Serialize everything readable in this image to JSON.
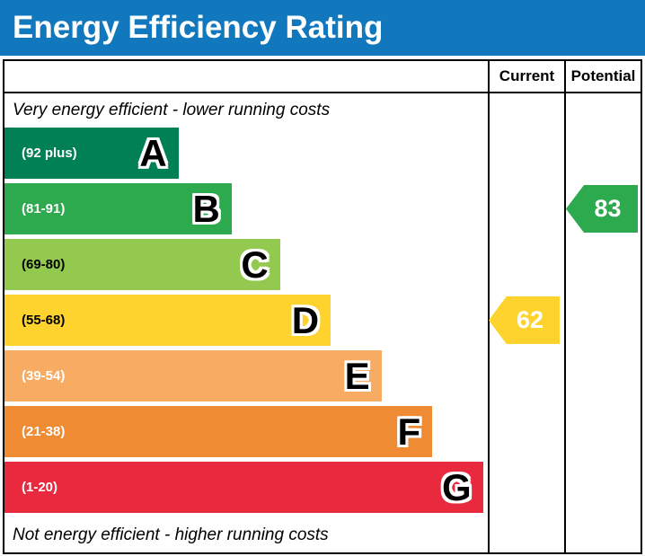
{
  "title": "Energy Efficiency Rating",
  "title_bg": "#1278be",
  "columns": {
    "current": "Current",
    "potential": "Potential"
  },
  "notes": {
    "top": "Very energy efficient - lower running costs",
    "bottom": "Not energy efficient - higher running costs"
  },
  "bands": [
    {
      "letter": "A",
      "range": "(92 plus)",
      "color": "#008054",
      "width": "36%",
      "label_color": "#ffffff"
    },
    {
      "letter": "B",
      "range": "(81-91)",
      "color": "#2eaa4e",
      "width": "47%",
      "label_color": "#ffffff"
    },
    {
      "letter": "C",
      "range": "(69-80)",
      "color": "#92c94e",
      "width": "57%",
      "label_color": "#000000"
    },
    {
      "letter": "D",
      "range": "(55-68)",
      "color": "#fed32e",
      "width": "67.5%",
      "label_color": "#000000"
    },
    {
      "letter": "E",
      "range": "(39-54)",
      "color": "#f7ab63",
      "width": "78%",
      "label_color": "#ffffff"
    },
    {
      "letter": "F",
      "range": "(21-38)",
      "color": "#ee8b33",
      "width": "88.5%",
      "label_color": "#ffffff"
    },
    {
      "letter": "G",
      "range": "(1-20)",
      "color": "#e9293d",
      "width": "99%",
      "label_color": "#ffffff"
    }
  ],
  "ratings": {
    "current": {
      "value": "62",
      "band": "D",
      "row": 3,
      "color": "#fed32e"
    },
    "potential": {
      "value": "83",
      "band": "B",
      "row": 1,
      "color": "#2eaa4e"
    }
  },
  "chart_data": {
    "type": "bar",
    "title": "Energy Efficiency Rating",
    "categories": [
      "A (92 plus)",
      "B (81-91)",
      "C (69-80)",
      "D (55-68)",
      "E (39-54)",
      "F (21-38)",
      "G (1-20)"
    ],
    "band_colors": [
      "#008054",
      "#2eaa4e",
      "#92c94e",
      "#fed32e",
      "#f7ab63",
      "#ee8b33",
      "#e9293d"
    ],
    "series": [
      {
        "name": "Current",
        "value": 62,
        "band": "D"
      },
      {
        "name": "Potential",
        "value": 83,
        "band": "B"
      }
    ],
    "scale_min": 1,
    "scale_max": 100,
    "top_note": "Very energy efficient - lower running costs",
    "bottom_note": "Not energy efficient - higher running costs",
    "legend_position": "header-right-columns"
  }
}
